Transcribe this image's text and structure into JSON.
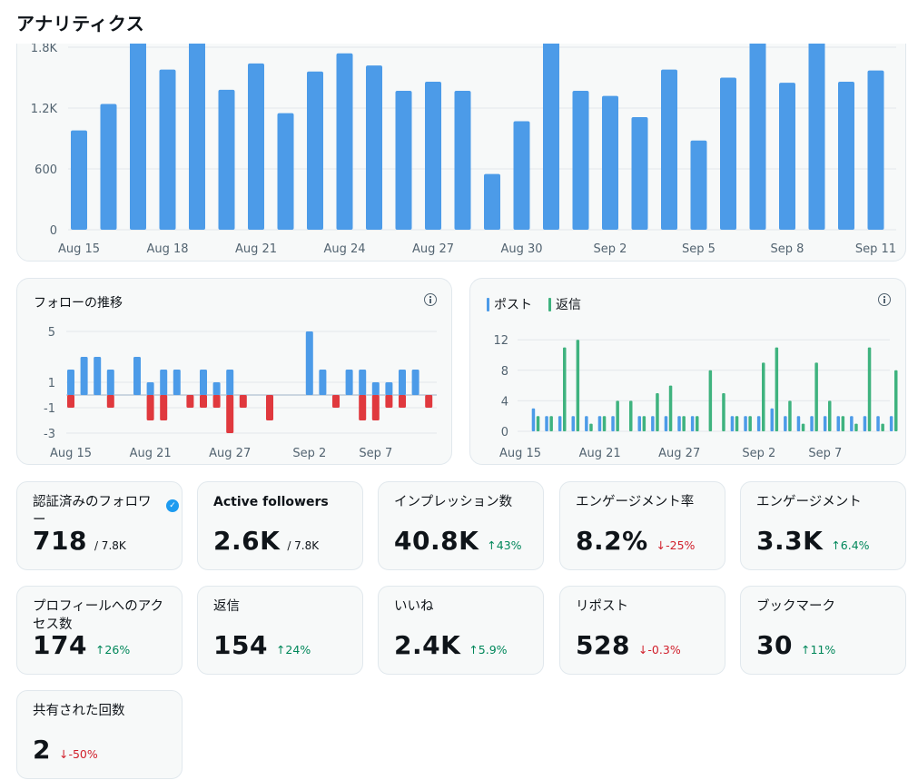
{
  "header": {
    "title": "アナリティクス"
  },
  "colors": {
    "blue": "#4c9be8",
    "red": "#e0393e",
    "green": "#3fb37f",
    "up": "#00875a",
    "down": "#d1202c"
  },
  "impressions_chart": {
    "chart_data": {
      "type": "bar",
      "y_ticks": [
        "0",
        "600",
        "1.2K",
        "1.8K"
      ],
      "ylim": [
        0,
        1800
      ],
      "x_tick_labels": [
        "Aug 15",
        "Aug 18",
        "Aug 21",
        "Aug 24",
        "Aug 27",
        "Aug 30",
        "Sep 2",
        "Sep 5",
        "Sep 8",
        "Sep 11"
      ],
      "categories": [
        "Aug 15",
        "Aug 16",
        "Aug 17",
        "Aug 18",
        "Aug 19",
        "Aug 20",
        "Aug 21",
        "Aug 22",
        "Aug 23",
        "Aug 24",
        "Aug 25",
        "Aug 26",
        "Aug 27",
        "Aug 28",
        "Aug 29",
        "Aug 30",
        "Aug 31",
        "Sep 1",
        "Sep 2",
        "Sep 3",
        "Sep 4",
        "Sep 5",
        "Sep 6",
        "Sep 7",
        "Sep 8",
        "Sep 9",
        "Sep 10",
        "Sep 11"
      ],
      "values": [
        980,
        1240,
        1850,
        1580,
        1850,
        1380,
        1640,
        1150,
        1560,
        1740,
        1620,
        1370,
        1460,
        1370,
        550,
        1070,
        1850,
        1370,
        1320,
        1110,
        1580,
        880,
        1500,
        1850,
        1450,
        1850,
        1460,
        1570
      ]
    }
  },
  "follow_chart": {
    "title": "フォローの推移",
    "chart_data": {
      "type": "bar",
      "y_ticks": [
        "-3",
        "-1",
        "1",
        "5"
      ],
      "ylim": [
        -3,
        5
      ],
      "x_tick_labels": [
        "Aug 15",
        "Aug 21",
        "Aug 27",
        "Sep 2",
        "Sep 7"
      ],
      "categories": [
        "Aug 15",
        "Aug 16",
        "Aug 17",
        "Aug 18",
        "Aug 19",
        "Aug 20",
        "Aug 21",
        "Aug 22",
        "Aug 23",
        "Aug 24",
        "Aug 25",
        "Aug 26",
        "Aug 27",
        "Aug 28",
        "Aug 29",
        "Aug 30",
        "Aug 31",
        "Sep 1",
        "Sep 2",
        "Sep 3",
        "Sep 4",
        "Sep 5",
        "Sep 6",
        "Sep 7",
        "Sep 8",
        "Sep 9",
        "Sep 10",
        "Sep 11"
      ],
      "series": [
        {
          "values": [
            2,
            3,
            3,
            2,
            0,
            3,
            1,
            2,
            2,
            0,
            2,
            1,
            2,
            0,
            0,
            0,
            0,
            0,
            5,
            2,
            0,
            2,
            2,
            1,
            1,
            2,
            2,
            0
          ]
        },
        {
          "values": [
            -1,
            0,
            0,
            -1,
            0,
            0,
            -2,
            -2,
            0,
            -1,
            -1,
            -1,
            -3,
            -1,
            0,
            -2,
            0,
            0,
            0,
            0,
            -1,
            0,
            -2,
            -2,
            -1,
            -1,
            0,
            -1
          ]
        }
      ]
    }
  },
  "posts_chart": {
    "legend": [
      "ポスト",
      "返信"
    ],
    "chart_data": {
      "type": "bar",
      "y_ticks": [
        "0",
        "4",
        "8",
        "12"
      ],
      "ylim": [
        0,
        12
      ],
      "x_tick_labels": [
        "Aug 15",
        "Aug 21",
        "Aug 27",
        "Sep 2",
        "Sep 7"
      ],
      "categories": [
        "Aug 15",
        "Aug 16",
        "Aug 17",
        "Aug 18",
        "Aug 19",
        "Aug 20",
        "Aug 21",
        "Aug 22",
        "Aug 23",
        "Aug 24",
        "Aug 25",
        "Aug 26",
        "Aug 27",
        "Aug 28",
        "Aug 29",
        "Aug 30",
        "Aug 31",
        "Sep 1",
        "Sep 2",
        "Sep 3",
        "Sep 4",
        "Sep 5",
        "Sep 6",
        "Sep 7",
        "Sep 8",
        "Sep 9",
        "Sep 10",
        "Sep 11"
      ],
      "series": [
        {
          "name": "ポスト",
          "values": [
            3,
            2,
            2,
            2,
            2,
            2,
            2,
            0,
            2,
            2,
            2,
            2,
            2,
            0,
            0,
            2,
            2,
            2,
            3,
            2,
            2,
            2,
            2,
            2,
            2,
            2,
            2,
            2
          ]
        },
        {
          "name": "返信",
          "values": [
            2,
            2,
            11,
            12,
            1,
            2,
            4,
            4,
            2,
            5,
            6,
            2,
            2,
            8,
            5,
            2,
            2,
            9,
            11,
            4,
            1,
            9,
            4,
            2,
            1,
            11,
            1,
            8
          ]
        }
      ]
    }
  },
  "metrics": [
    {
      "label": "認証済みのフォロワー",
      "value": "718",
      "sub": "/ 7.8K",
      "delta": "",
      "dir": ""
    },
    {
      "label": "Active followers",
      "value": "2.6K",
      "sub": "/ 7.8K",
      "delta": "",
      "dir": ""
    },
    {
      "label": "インプレッション数",
      "value": "40.8K",
      "sub": "",
      "delta": "↑43%",
      "dir": "up"
    },
    {
      "label": "エンゲージメント率",
      "value": "8.2%",
      "sub": "",
      "delta": "↓-25%",
      "dir": "down"
    },
    {
      "label": "エンゲージメント",
      "value": "3.3K",
      "sub": "",
      "delta": "↑6.4%",
      "dir": "up"
    },
    {
      "label": "プロフィールへのアクセス数",
      "value": "174",
      "sub": "",
      "delta": "↑26%",
      "dir": "up"
    },
    {
      "label": "返信",
      "value": "154",
      "sub": "",
      "delta": "↑24%",
      "dir": "up"
    },
    {
      "label": "いいね",
      "value": "2.4K",
      "sub": "",
      "delta": "↑5.9%",
      "dir": "up"
    },
    {
      "label": "リポスト",
      "value": "528",
      "sub": "",
      "delta": "↓-0.3%",
      "dir": "down"
    },
    {
      "label": "ブックマーク",
      "value": "30",
      "sub": "",
      "delta": "↑11%",
      "dir": "up"
    },
    {
      "label": "共有された回数",
      "value": "2",
      "sub": "",
      "delta": "↓-50%",
      "dir": "down"
    }
  ]
}
